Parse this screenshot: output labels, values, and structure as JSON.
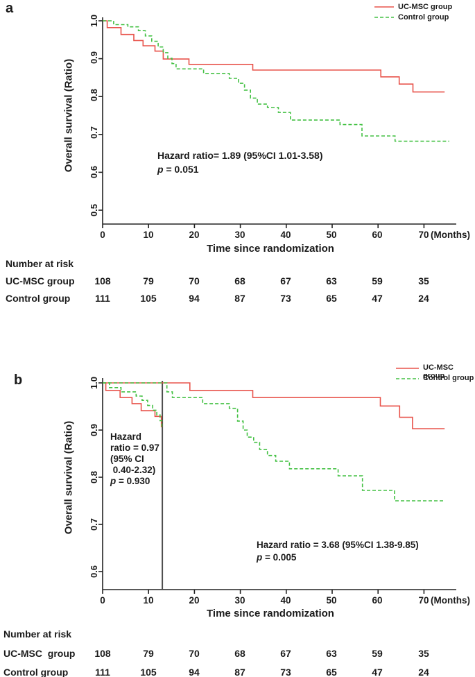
{
  "figure": {
    "panel_a_letter": "a",
    "panel_b_letter": "b"
  },
  "chart_data": {
    "type": "line",
    "subtype": "kaplan-meier-step-curves",
    "colors": {
      "uc_msc": "#e8534b",
      "control": "#44c144",
      "vertical_line": "#4d4d4d",
      "axis": "#222222"
    },
    "panels": [
      {
        "id": "a",
        "ylabel": "Overall survival (Ratio)",
        "xlabel": "Time since randomization",
        "x_unit_label": "(Months)",
        "x_ticks": [
          "0",
          "10",
          "20",
          "30",
          "40",
          "50",
          "60",
          "70"
        ],
        "y_ticks": [
          "1.0",
          "0.9",
          "0.8",
          "0.7",
          "0.6",
          "0.5"
        ],
        "xlim": [
          0,
          77
        ],
        "ylim": [
          0.46,
          1.0
        ],
        "grid": false,
        "legend_position": "top-right",
        "legend": [
          {
            "label": "UC-MSC group",
            "color": "#e8534b",
            "style": "solid"
          },
          {
            "label": "Control group",
            "color": "#44c144",
            "style": "dashed"
          }
        ],
        "annotation": {
          "line1": "Hazard ratio= 1.89 (95%CI 1.01-3.58)",
          "p_italic": "p",
          "p_rest": " = 0.051"
        },
        "series": [
          {
            "name": "UC-MSC group",
            "color": "#e8534b",
            "style": "solid",
            "end_t": 74.5,
            "points": [
              [
                0,
                1.0
              ],
              [
                1,
                0.982
              ],
              [
                4,
                0.964
              ],
              [
                6.8,
                0.948
              ],
              [
                8.8,
                0.934
              ],
              [
                11.4,
                0.92
              ],
              [
                13.2,
                0.899
              ],
              [
                18.8,
                0.885
              ],
              [
                32.7,
                0.87
              ],
              [
                60.6,
                0.852
              ],
              [
                64.6,
                0.833
              ],
              [
                67.6,
                0.812
              ]
            ]
          },
          {
            "name": "Control group",
            "color": "#44c144",
            "style": "dashed",
            "end_t": 75.5,
            "points": [
              [
                0,
                1.0
              ],
              [
                2.4,
                0.99
              ],
              [
                5.5,
                0.984
              ],
              [
                7.8,
                0.974
              ],
              [
                9.3,
                0.96
              ],
              [
                10.7,
                0.946
              ],
              [
                12.1,
                0.931
              ],
              [
                13.2,
                0.916
              ],
              [
                14.2,
                0.901
              ],
              [
                15.1,
                0.887
              ],
              [
                16,
                0.873
              ],
              [
                22,
                0.861
              ],
              [
                27.6,
                0.848
              ],
              [
                29.6,
                0.835
              ],
              [
                30.9,
                0.817
              ],
              [
                32.2,
                0.796
              ],
              [
                33.7,
                0.78
              ],
              [
                35.9,
                0.771
              ],
              [
                38.3,
                0.758
              ],
              [
                40.9,
                0.738
              ],
              [
                51.7,
                0.726
              ],
              [
                56.5,
                0.696
              ],
              [
                63.7,
                0.682
              ]
            ]
          }
        ],
        "number_at_risk": {
          "title": "Number at risk",
          "rows": [
            {
              "label": "UC-MSC group",
              "values": [
                "108",
                "79",
                "70",
                "68",
                "67",
                "63",
                "59",
                "35"
              ]
            },
            {
              "label": "Control group",
              "values": [
                "111",
                "105",
                "94",
                "87",
                "73",
                "65",
                "47",
                "24"
              ]
            }
          ]
        }
      },
      {
        "id": "b",
        "ylabel": "Overall survival (Ratio)",
        "xlabel": "Time since randomization",
        "x_unit_label": "(Months)",
        "x_ticks": [
          "0",
          "10",
          "20",
          "30",
          "40",
          "50",
          "60",
          "70"
        ],
        "y_ticks": [
          "1.0",
          "0.9",
          "0.8",
          "0.7",
          "0.6"
        ],
        "xlim": [
          0,
          77
        ],
        "ylim": [
          0.56,
          1.0
        ],
        "grid": false,
        "legend_position": "top-right",
        "vertical_line": {
          "t": 13,
          "color": "#4d4d4d"
        },
        "legend": [
          {
            "label": "UC-MSC group",
            "color": "#e8534b",
            "style": "solid"
          },
          {
            "label": "Control group",
            "color": "#44c144",
            "style": "dashed"
          }
        ],
        "annotation_left": {
          "line1": "Hazard",
          "line2": "ratio = 0.97",
          "line3": "(95% CI",
          "line4": " 0.40-2.32)",
          "p_italic": "p",
          "p_rest": " = 0.930"
        },
        "annotation_right": {
          "line1": "Hazard ratio = 3.68 (95%CI 1.38-9.85)",
          "p_italic": "p",
          "p_rest": " = 0.005"
        },
        "series": [
          {
            "name": "UC-MSC group",
            "segment": "0-13 months",
            "color": "#e8534b",
            "style": "solid",
            "end_t": 13,
            "points": [
              [
                0,
                1.0
              ],
              [
                0.7,
                0.984
              ],
              [
                3.8,
                0.969
              ],
              [
                6.4,
                0.956
              ],
              [
                8.4,
                0.941
              ],
              [
                11.4,
                0.929
              ],
              [
                12.8,
                0.907
              ]
            ]
          },
          {
            "name": "UC-MSC group",
            "segment": "after 13 months",
            "color": "#e8534b",
            "style": "solid",
            "end_t": 74.5,
            "points": [
              [
                0,
                1.0
              ],
              [
                19,
                0.984
              ],
              [
                32.7,
                0.969
              ],
              [
                60.5,
                0.951
              ],
              [
                64.7,
                0.927
              ],
              [
                67.5,
                0.903
              ]
            ]
          },
          {
            "name": "Control group",
            "segment": "0-13 months",
            "color": "#44c144",
            "style": "dashed",
            "end_t": 13,
            "points": [
              [
                0,
                1.0
              ],
              [
                1.5,
                0.99
              ],
              [
                4,
                0.981
              ],
              [
                7.3,
                0.972
              ],
              [
                8.6,
                0.963
              ],
              [
                9.8,
                0.952
              ],
              [
                10.9,
                0.942
              ],
              [
                11.8,
                0.932
              ],
              [
                12.5,
                0.92
              ],
              [
                12.9,
                0.908
              ]
            ]
          },
          {
            "name": "Control group",
            "segment": "after 13 months",
            "color": "#44c144",
            "style": "dashed",
            "end_t": 74.2,
            "points": [
              [
                0,
                1.0
              ],
              [
                14,
                0.981
              ],
              [
                15.2,
                0.969
              ],
              [
                21.8,
                0.956
              ],
              [
                27.6,
                0.946
              ],
              [
                29.4,
                0.919
              ],
              [
                30.6,
                0.9
              ],
              [
                31.5,
                0.885
              ],
              [
                32.9,
                0.874
              ],
              [
                34.2,
                0.859
              ],
              [
                35.9,
                0.846
              ],
              [
                37.7,
                0.834
              ],
              [
                40.7,
                0.818
              ],
              [
                51.3,
                0.803
              ],
              [
                56.6,
                0.772
              ],
              [
                63.6,
                0.75
              ]
            ]
          }
        ],
        "number_at_risk": {
          "title": "Number at risk",
          "rows": [
            {
              "label": "UC-MSC  group",
              "values": [
                "108",
                "79",
                "70",
                "68",
                "67",
                "63",
                "59",
                "35"
              ]
            },
            {
              "label": "Control group",
              "values": [
                "111",
                "105",
                "94",
                "87",
                "73",
                "65",
                "47",
                "24"
              ]
            }
          ]
        }
      }
    ]
  }
}
